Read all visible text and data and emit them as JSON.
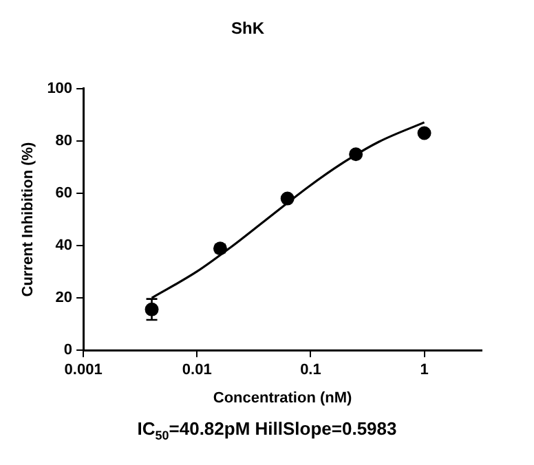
{
  "chart_data": {
    "type": "scatter",
    "title": "ShK",
    "xlabel": "Concentration (nM)",
    "ylabel": "Current Inhibition (%)",
    "log": "x",
    "xlim": [
      0.001,
      3.2
    ],
    "xticks": [
      0.001,
      0.01,
      0.1,
      1
    ],
    "ylim": [
      0,
      100
    ],
    "yticks": [
      0,
      20,
      40,
      60,
      80,
      100
    ],
    "grid": false,
    "legend": false,
    "marker": "circle",
    "series": [
      {
        "color": "#000000",
        "x": [
          0.004,
          0.016,
          0.0625,
          0.25,
          1
        ],
        "values": [
          15.6,
          38.9,
          58,
          74.9,
          83
        ],
        "errors": [
          4,
          1.5,
          null,
          null,
          null
        ]
      },
      {
        "type": "line",
        "color": "#000000",
        "marker": "none",
        "line_style": "solid",
        "x": [
          0.004,
          0.01,
          0.02,
          0.04,
          0.1,
          0.2,
          0.4,
          1
        ],
        "values": [
          20,
          30.1,
          39.5,
          49.7,
          63.1,
          72.1,
          79.7,
          87.1
        ]
      }
    ],
    "annotations": [
      "IC$_{50}$=40.82pM HillSlope=0.5983"
    ]
  }
}
